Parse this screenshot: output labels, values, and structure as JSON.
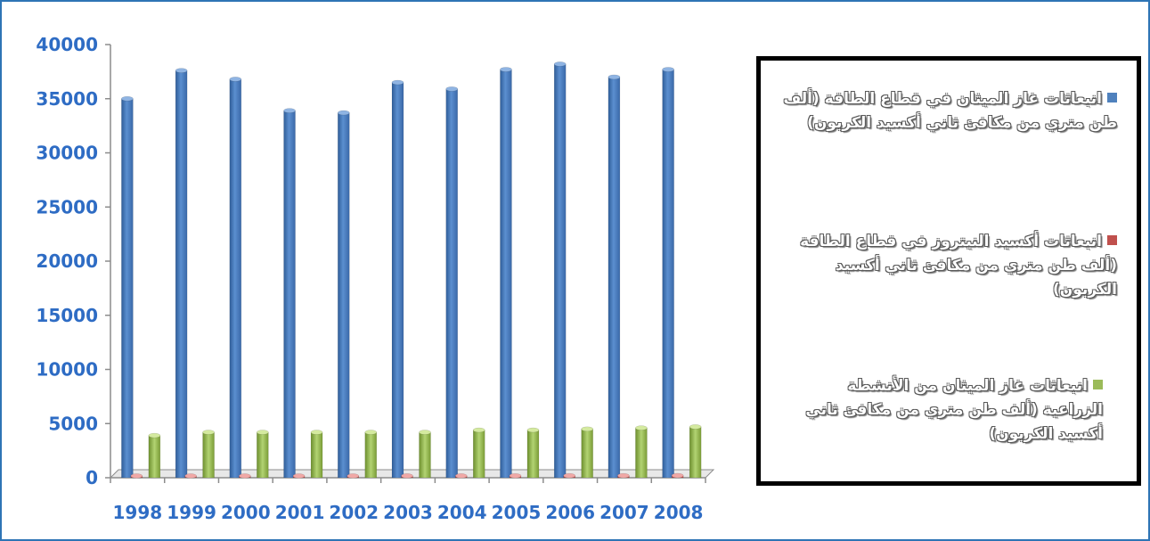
{
  "chart_data": {
    "type": "bar",
    "categories": [
      "1998",
      "1999",
      "2000",
      "2001",
      "2002",
      "2003",
      "2004",
      "2005",
      "2006",
      "2007",
      "2008"
    ],
    "series": [
      {
        "name": "انبعاثات غاز الميثان في قطاع الطاقة (ألف طن متري من مكافئ ثاني أكسيد الكربون)",
        "color": "#4f81bd",
        "values": [
          35000,
          37600,
          36800,
          33900,
          33700,
          36500,
          35900,
          37700,
          38200,
          37000,
          37700
        ]
      },
      {
        "name": "انبعاثات أكسيد النيتروز في قطاع الطاقة (ألف طن متري من مكافئ ثاني أكسيد الكربون)",
        "color": "#c0504d",
        "values": [
          150,
          160,
          160,
          160,
          160,
          170,
          170,
          180,
          190,
          190,
          200
        ]
      },
      {
        "name": "انبعاثات غاز الميثان من الأنشطة الزراعية (ألف طن متري من مكافئ ثاني أكسيد الكربون)",
        "color": "#9bbb59",
        "values": [
          3900,
          4200,
          4200,
          4200,
          4200,
          4200,
          4400,
          4400,
          4500,
          4600,
          4700
        ]
      }
    ],
    "yticks": [
      "0",
      "5000",
      "10000",
      "15000",
      "20000",
      "25000",
      "30000",
      "35000",
      "40000"
    ],
    "ylim": [
      0,
      40000
    ],
    "title": "",
    "xlabel": "",
    "ylabel": "",
    "grid": false,
    "legend_position": "right"
  }
}
